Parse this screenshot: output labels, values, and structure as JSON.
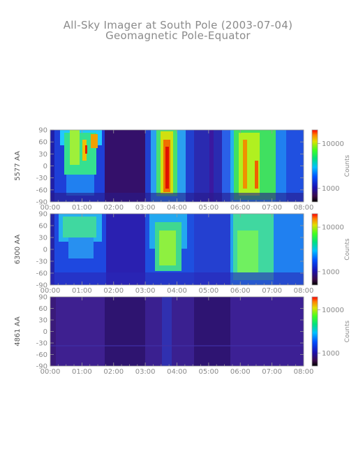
{
  "title_line1": "All-Sky Imager at South Pole (2003-07-04)",
  "title_line2": "Geomagnetic Pole-Equator",
  "chart_data": [
    {
      "type": "heatmap",
      "ylabel": "5577 AA",
      "colorbar_label": "Counts",
      "colorbar_ticks": [
        "10000",
        "1000"
      ],
      "y_ticks": [
        "90",
        "60",
        "30",
        "0",
        "-30",
        "-60",
        "-90"
      ],
      "x_ticks": [
        "00:00",
        "01:00",
        "02:00",
        "03:00",
        "04:00",
        "05:00",
        "06:00",
        "07:00",
        "08:00"
      ],
      "ylim": [
        -90,
        90
      ],
      "xlim": [
        "00:00",
        "08:00"
      ],
      "colorbar_scale": "log",
      "colorbar_range": [
        500,
        20000
      ]
    },
    {
      "type": "heatmap",
      "ylabel": "6300 AA",
      "colorbar_label": "Counts",
      "colorbar_ticks": [
        "10000",
        "1000"
      ],
      "y_ticks": [
        "90",
        "60",
        "30",
        "0",
        "-30",
        "-60",
        "-90"
      ],
      "x_ticks": [
        "00:00",
        "01:00",
        "02:00",
        "03:00",
        "04:00",
        "05:00",
        "06:00",
        "07:00",
        "08:00"
      ],
      "ylim": [
        -90,
        90
      ],
      "xlim": [
        "00:00",
        "08:00"
      ],
      "colorbar_scale": "log",
      "colorbar_range": [
        500,
        20000
      ]
    },
    {
      "type": "heatmap",
      "ylabel": "4861 AA",
      "colorbar_label": "Counts",
      "colorbar_ticks": [
        "10000",
        "1000"
      ],
      "y_ticks": [
        "90",
        "60",
        "30",
        "0",
        "-30",
        "-60",
        "-90"
      ],
      "x_ticks": [
        "00:00",
        "01:00",
        "02:00",
        "03:00",
        "04:00",
        "05:00",
        "06:00",
        "07:00",
        "08:00"
      ],
      "ylim": [
        -90,
        90
      ],
      "xlim": [
        "00:00",
        "08:00"
      ],
      "colorbar_scale": "log",
      "colorbar_range": [
        500,
        20000
      ]
    }
  ]
}
